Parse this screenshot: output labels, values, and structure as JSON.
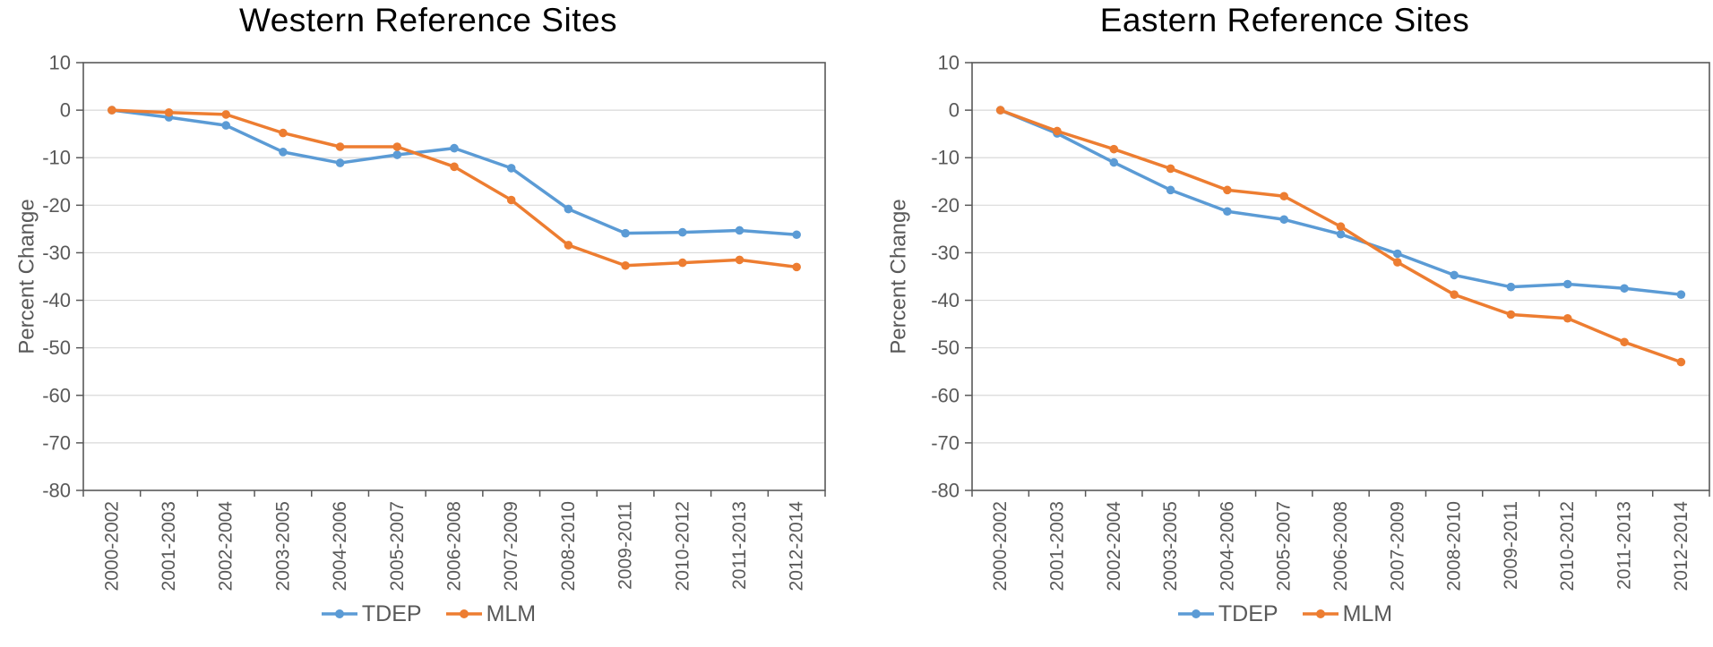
{
  "chart_data": [
    {
      "type": "line",
      "title": "Western Reference Sites",
      "xlabel": "",
      "ylabel": "Percent Change",
      "ylim": [
        -80,
        10
      ],
      "yticks": [
        10,
        0,
        -10,
        -20,
        -30,
        -40,
        -50,
        -60,
        -70,
        -80
      ],
      "grid": true,
      "legend_position": "bottom",
      "categories": [
        "2000-2002",
        "2001-2003",
        "2002-2004",
        "2003-2005",
        "2004-2006",
        "2005-2007",
        "2006-2008",
        "2007-2009",
        "2008-2010",
        "2009-2011",
        "2010-2012",
        "2011-2013",
        "2012-2014"
      ],
      "series": [
        {
          "name": "TDEP",
          "color": "#5B9BD5",
          "values": [
            0,
            -1.5,
            -3.2,
            -8.8,
            -11.1,
            -9.4,
            -8.0,
            -12.2,
            -20.8,
            -25.9,
            -25.7,
            -25.3,
            -26.2
          ]
        },
        {
          "name": "MLM",
          "color": "#ED7D31",
          "values": [
            0,
            -0.5,
            -0.9,
            -4.8,
            -7.7,
            -7.7,
            -11.9,
            -18.9,
            -28.4,
            -32.7,
            -32.1,
            -31.5,
            -33.0
          ]
        }
      ]
    },
    {
      "type": "line",
      "title": "Eastern Reference Sites",
      "xlabel": "",
      "ylabel": "Percent Change",
      "ylim": [
        -80,
        10
      ],
      "yticks": [
        10,
        0,
        -10,
        -20,
        -30,
        -40,
        -50,
        -60,
        -70,
        -80
      ],
      "grid": true,
      "legend_position": "bottom",
      "categories": [
        "2000-2002",
        "2001-2003",
        "2002-2004",
        "2003-2005",
        "2004-2006",
        "2005-2007",
        "2006-2008",
        "2007-2009",
        "2008-2010",
        "2009-2011",
        "2010-2012",
        "2011-2013",
        "2012-2014"
      ],
      "series": [
        {
          "name": "TDEP",
          "color": "#5B9BD5",
          "values": [
            0,
            -4.9,
            -11.0,
            -16.8,
            -21.3,
            -23.0,
            -26.1,
            -30.2,
            -34.7,
            -37.2,
            -36.6,
            -37.5,
            -38.8
          ]
        },
        {
          "name": "MLM",
          "color": "#ED7D31",
          "values": [
            0,
            -4.4,
            -8.2,
            -12.3,
            -16.8,
            -18.1,
            -24.5,
            -32.0,
            -38.8,
            -43.0,
            -43.8,
            -48.8,
            -53.0
          ]
        }
      ]
    }
  ],
  "colors": {
    "tdep_series": "#5B9BD5",
    "mlm_series": "#ED7D31",
    "axis_text": "#595959",
    "axis_line": "#595959",
    "gridline": "#D9D9D9",
    "title_text": "#000000",
    "background": "#FFFFFF"
  }
}
